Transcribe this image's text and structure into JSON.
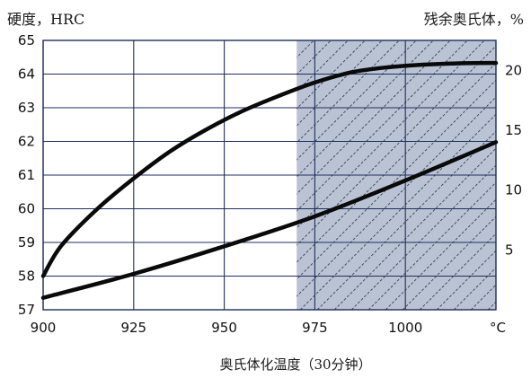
{
  "chart_data": {
    "type": "line",
    "title_left": "硬度，HRC",
    "title_right": "残余奥氏体，%",
    "xlabel": "奥氏体化温度（30分钟）",
    "x_unit": "°C",
    "x_ticks": [
      900,
      925,
      950,
      975,
      1000
    ],
    "xlim": [
      900,
      1025
    ],
    "y_left_ticks": [
      57,
      58,
      59,
      60,
      61,
      62,
      63,
      64,
      65
    ],
    "y_left_lim": [
      57,
      65
    ],
    "y_right_ticks": [
      5,
      10,
      15,
      20
    ],
    "y_right_lim": [
      0,
      22.5
    ],
    "grid": true,
    "shaded_region": {
      "x_from": 970,
      "x_to": 1025,
      "pattern": "diagonal-hatch",
      "color": "#b9c3d3"
    },
    "series": [
      {
        "axis": "left",
        "x": [
          900,
          905,
          915,
          925,
          935,
          945,
          955,
          965,
          975,
          985,
          995,
          1005,
          1015,
          1025
        ],
        "y": [
          58.0,
          58.9,
          60.0,
          60.9,
          61.7,
          62.35,
          62.9,
          63.35,
          63.75,
          64.05,
          64.2,
          64.28,
          64.32,
          64.33
        ]
      },
      {
        "axis": "right",
        "x": [
          900,
          925,
          950,
          975,
          1000,
          1025
        ],
        "y": [
          1.0,
          3.0,
          5.3,
          7.8,
          10.8,
          14.0
        ]
      }
    ]
  }
}
